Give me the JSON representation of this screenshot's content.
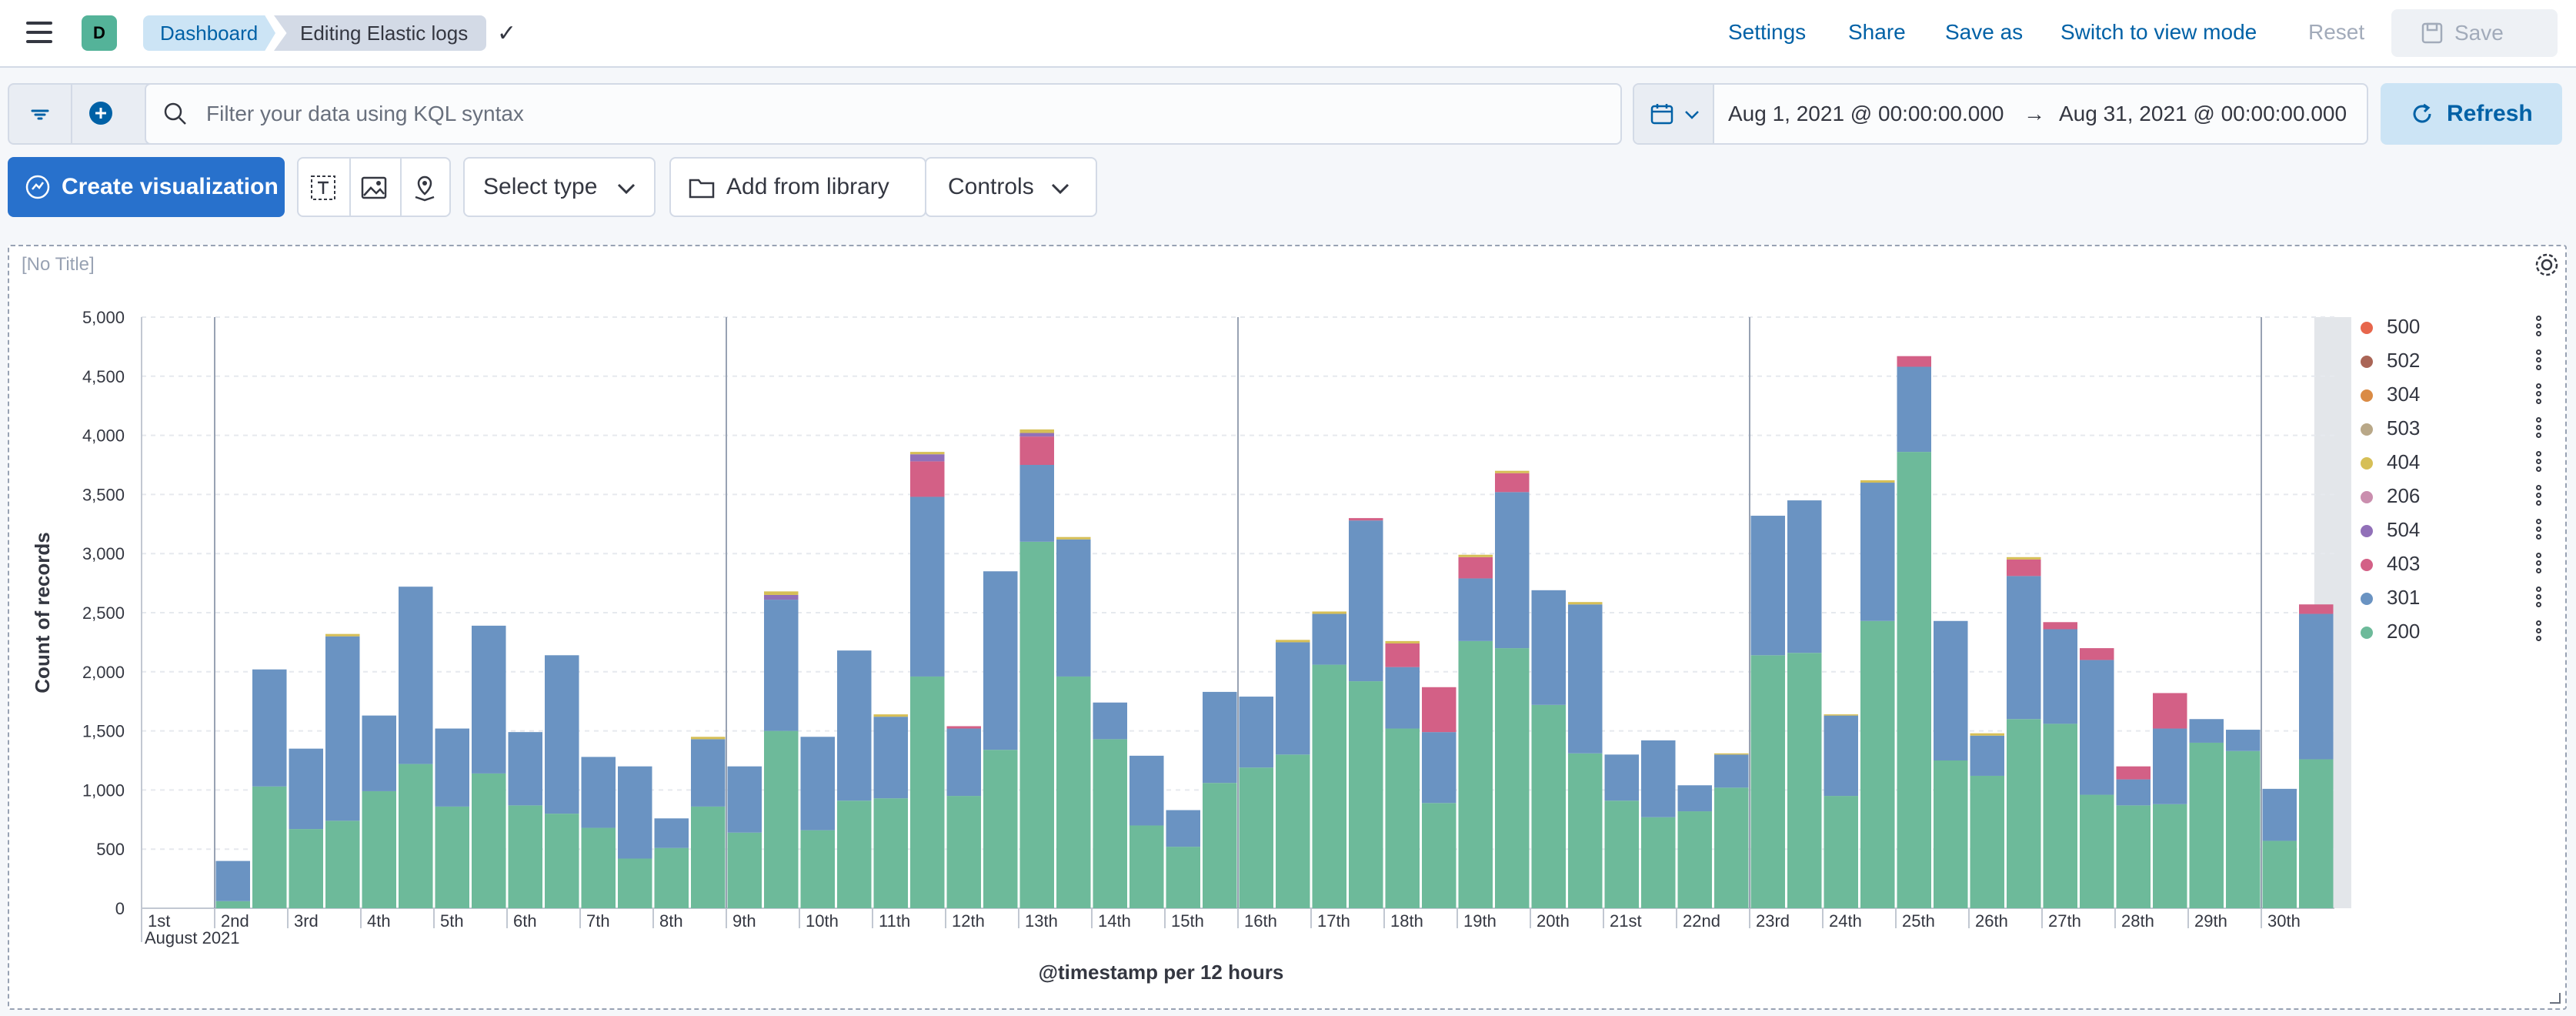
{
  "header": {
    "avatar": "D",
    "breadcrumbs": [
      "Dashboard",
      "Editing Elastic logs"
    ],
    "links": {
      "settings": "Settings",
      "share": "Share",
      "save_as": "Save as",
      "switch": "Switch to view mode",
      "reset": "Reset"
    },
    "save_label": "Save"
  },
  "query": {
    "placeholder": "Filter your data using KQL syntax"
  },
  "date": {
    "start": "Aug 1, 2021 @ 00:00:00.000",
    "end": "Aug 31, 2021 @ 00:00:00.000",
    "refresh": "Refresh"
  },
  "toolbar": {
    "create": "Create visualization",
    "select_type": "Select type",
    "add_library": "Add from library",
    "controls": "Controls"
  },
  "panel": {
    "title": "[No Title]"
  },
  "colors": {
    "200": "#6dba9a",
    "301": "#6a93c2",
    "403": "#d36086",
    "504": "#9170b8",
    "206": "#ca8eae",
    "404": "#d6bf57",
    "503": "#b9a888",
    "304": "#da8b45",
    "502": "#aa6556",
    "500": "#e7664c"
  },
  "chart_data": {
    "type": "bar",
    "stacked": true,
    "xlabel": "@timestamp per 12 hours",
    "ylabel": "Count of records",
    "ylim": [
      0,
      5000
    ],
    "yticks": [
      "0",
      "500",
      "1,000",
      "1,500",
      "2,000",
      "2,500",
      "3,000",
      "3,500",
      "4,000",
      "4,500",
      "5,000"
    ],
    "xticks": [
      "1st",
      "2nd",
      "3rd",
      "4th",
      "5th",
      "6th",
      "7th",
      "8th",
      "9th",
      "10th",
      "11th",
      "12th",
      "13th",
      "14th",
      "15th",
      "16th",
      "17th",
      "18th",
      "19th",
      "20th",
      "21st",
      "22nd",
      "23rd",
      "24th",
      "25th",
      "26th",
      "27th",
      "28th",
      "29th",
      "30th"
    ],
    "xsub": "August 2021",
    "legend": [
      "500",
      "502",
      "304",
      "503",
      "404",
      "206",
      "504",
      "403",
      "301",
      "200"
    ],
    "series": [
      {
        "name": "200",
        "values": [
          0,
          0,
          60,
          1030,
          670,
          740,
          990,
          1220,
          860,
          1140,
          870,
          800,
          680,
          420,
          510,
          860,
          640,
          1500,
          660,
          910,
          930,
          1960,
          950,
          1340,
          3100,
          1960,
          1430,
          700,
          520,
          1060,
          1190,
          1300,
          2060,
          1920,
          1520,
          890,
          2260,
          2200,
          1720,
          1310,
          910,
          770,
          820,
          1020,
          2140,
          2160,
          950,
          2430,
          3860,
          1250,
          1120,
          1600,
          1560,
          960,
          870,
          880,
          1400,
          1330,
          570,
          1260
        ]
      },
      {
        "name": "301",
        "values": [
          0,
          0,
          340,
          990,
          680,
          1560,
          640,
          1500,
          660,
          1250,
          620,
          1340,
          600,
          780,
          250,
          570,
          560,
          1110,
          790,
          1270,
          690,
          1520,
          570,
          1510,
          650,
          1160,
          310,
          590,
          310,
          770,
          600,
          950,
          430,
          1360,
          520,
          600,
          530,
          1320,
          970,
          1260,
          390,
          650,
          220,
          280,
          1180,
          1290,
          680,
          1170,
          720,
          1180,
          340,
          1210,
          800,
          1140,
          220,
          640,
          200,
          180,
          440,
          1230
        ]
      },
      {
        "name": "403",
        "values": [
          0,
          0,
          0,
          0,
          0,
          0,
          0,
          0,
          0,
          0,
          0,
          0,
          0,
          0,
          0,
          0,
          0,
          0,
          0,
          0,
          0,
          300,
          20,
          0,
          240,
          0,
          0,
          0,
          0,
          0,
          0,
          0,
          0,
          20,
          200,
          380,
          180,
          160,
          0,
          0,
          0,
          0,
          0,
          0,
          0,
          0,
          0,
          0,
          90,
          0,
          0,
          140,
          60,
          100,
          110,
          300,
          0,
          0,
          0,
          80
        ]
      },
      {
        "name": "504",
        "values": [
          0,
          0,
          0,
          0,
          0,
          0,
          0,
          0,
          0,
          0,
          0,
          0,
          0,
          0,
          0,
          0,
          0,
          40,
          0,
          0,
          0,
          60,
          0,
          0,
          30,
          0,
          0,
          0,
          0,
          0,
          0,
          0,
          0,
          0,
          0,
          0,
          0,
          0,
          0,
          0,
          0,
          0,
          0,
          0,
          0,
          0,
          0,
          0,
          0,
          0,
          0,
          0,
          0,
          0,
          0,
          0,
          0,
          0,
          0,
          0
        ]
      },
      {
        "name": "206",
        "values": [
          0,
          0,
          0,
          0,
          0,
          0,
          0,
          0,
          0,
          0,
          0,
          0,
          0,
          0,
          0,
          0,
          0,
          0,
          0,
          0,
          0,
          0,
          0,
          0,
          0,
          0,
          0,
          0,
          0,
          0,
          0,
          0,
          0,
          0,
          0,
          0,
          0,
          0,
          0,
          0,
          0,
          0,
          0,
          0,
          0,
          0,
          0,
          0,
          0,
          0,
          0,
          0,
          0,
          0,
          0,
          0,
          0,
          0,
          0,
          0
        ]
      },
      {
        "name": "404",
        "values": [
          0,
          0,
          0,
          0,
          0,
          20,
          0,
          0,
          0,
          0,
          0,
          0,
          0,
          0,
          0,
          20,
          0,
          30,
          0,
          0,
          20,
          20,
          0,
          0,
          30,
          20,
          0,
          0,
          0,
          0,
          0,
          20,
          20,
          0,
          20,
          0,
          20,
          20,
          0,
          20,
          0,
          0,
          0,
          10,
          0,
          0,
          10,
          20,
          0,
          0,
          20,
          20,
          0,
          0,
          0,
          0,
          0,
          0,
          0,
          0
        ]
      },
      {
        "name": "503",
        "values": [
          0,
          0,
          0,
          0,
          0,
          0,
          0,
          0,
          0,
          0,
          0,
          0,
          0,
          0,
          0,
          0,
          0,
          0,
          0,
          0,
          0,
          0,
          0,
          0,
          0,
          0,
          0,
          0,
          0,
          0,
          0,
          0,
          0,
          0,
          0,
          0,
          0,
          0,
          0,
          0,
          0,
          0,
          0,
          0,
          0,
          0,
          0,
          0,
          0,
          0,
          0,
          0,
          0,
          0,
          0,
          0,
          0,
          0,
          0,
          0
        ]
      },
      {
        "name": "304",
        "values": [
          0,
          0,
          0,
          0,
          0,
          0,
          0,
          0,
          0,
          0,
          0,
          0,
          0,
          0,
          0,
          0,
          0,
          0,
          0,
          0,
          0,
          0,
          0,
          0,
          0,
          0,
          0,
          0,
          0,
          0,
          0,
          0,
          0,
          0,
          0,
          0,
          0,
          0,
          0,
          0,
          0,
          0,
          0,
          0,
          0,
          0,
          0,
          0,
          0,
          0,
          0,
          0,
          0,
          0,
          0,
          0,
          0,
          0,
          0,
          0
        ]
      },
      {
        "name": "502",
        "values": [
          0,
          0,
          0,
          0,
          0,
          0,
          0,
          0,
          0,
          0,
          0,
          0,
          0,
          0,
          0,
          0,
          0,
          0,
          0,
          0,
          0,
          0,
          0,
          0,
          0,
          0,
          0,
          0,
          0,
          0,
          0,
          0,
          0,
          0,
          0,
          0,
          0,
          0,
          0,
          0,
          0,
          0,
          0,
          0,
          0,
          0,
          0,
          0,
          0,
          0,
          0,
          0,
          0,
          0,
          0,
          0,
          0,
          0,
          0,
          0
        ]
      },
      {
        "name": "500",
        "values": [
          0,
          0,
          0,
          0,
          0,
          0,
          0,
          0,
          0,
          0,
          0,
          0,
          0,
          0,
          0,
          0,
          0,
          0,
          0,
          0,
          0,
          0,
          0,
          0,
          0,
          0,
          0,
          0,
          0,
          0,
          0,
          0,
          0,
          0,
          0,
          0,
          0,
          0,
          0,
          0,
          0,
          0,
          0,
          0,
          0,
          0,
          0,
          0,
          0,
          0,
          0,
          0,
          0,
          0,
          0,
          0,
          0,
          0,
          0,
          0
        ]
      }
    ]
  }
}
